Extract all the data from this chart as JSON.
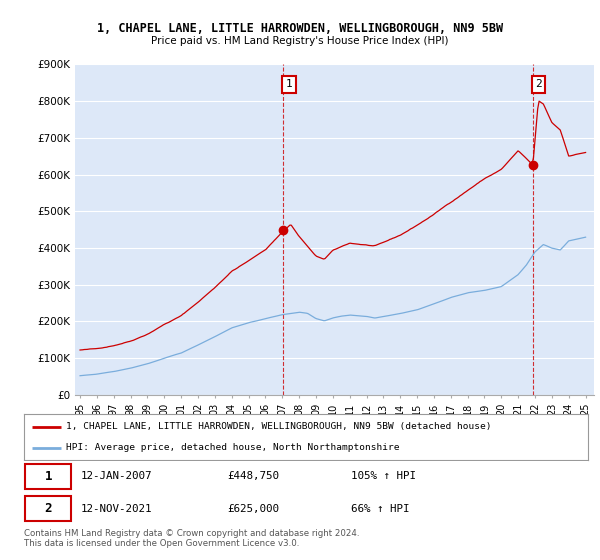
{
  "title1": "1, CHAPEL LANE, LITTLE HARROWDEN, WELLINGBOROUGH, NN9 5BW",
  "title2": "Price paid vs. HM Land Registry's House Price Index (HPI)",
  "background_color": "#ffffff",
  "plot_bg_color": "#dde8f8",
  "grid_color": "#ffffff",
  "red_color": "#cc0000",
  "blue_color": "#7aaddc",
  "sale1_year": 2007.04,
  "sale1_price": 448750,
  "sale2_year": 2021.87,
  "sale2_price": 625000,
  "legend_label_red": "1, CHAPEL LANE, LITTLE HARROWDEN, WELLINGBOROUGH, NN9 5BW (detached house)",
  "legend_label_blue": "HPI: Average price, detached house, North Northamptonshire",
  "note1_date": "12-JAN-2007",
  "note1_price": "£448,750",
  "note1_hpi": "105% ↑ HPI",
  "note2_date": "12-NOV-2021",
  "note2_price": "£625,000",
  "note2_hpi": "66% ↑ HPI",
  "footer": "Contains HM Land Registry data © Crown copyright and database right 2024.\nThis data is licensed under the Open Government Licence v3.0.",
  "ylim": [
    0,
    900000
  ],
  "yticks": [
    0,
    100000,
    200000,
    300000,
    400000,
    500000,
    600000,
    700000,
    800000,
    900000
  ],
  "ytick_labels": [
    "£0",
    "£100K",
    "£200K",
    "£300K",
    "£400K",
    "£500K",
    "£600K",
    "£700K",
    "£800K",
    "£900K"
  ],
  "xlim_start": 1994.7,
  "xlim_end": 2025.5
}
